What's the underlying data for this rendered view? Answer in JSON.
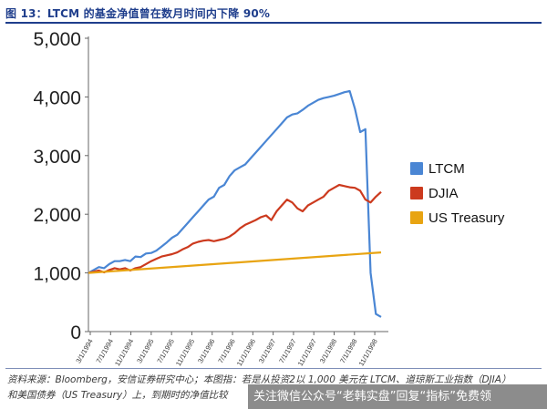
{
  "header": {
    "title": "图 13：LTCM 的基金净值曾在数月时间内下降 90%"
  },
  "chart_data": {
    "type": "line",
    "title": "",
    "xlabel": "",
    "ylabel": "",
    "ylim": [
      0,
      5000
    ],
    "yticks": [
      "0",
      "1,000",
      "2,000",
      "3,000",
      "4,000",
      "5,000"
    ],
    "xticks": [
      "3/1/1994",
      "7/1/1994",
      "11/1/1994",
      "3/1/1995",
      "7/1/1995",
      "11/1/1995",
      "3/1/1996",
      "7/1/1996",
      "11/1/1996",
      "3/1/1997",
      "7/1/1997",
      "11/1/1997",
      "3/1/1998",
      "7/1/1998",
      "11/1/1998"
    ],
    "legend_position": "right",
    "grid": false,
    "series": [
      {
        "name": "LTCM",
        "color": "#4a86d4",
        "values": [
          [
            0,
            1000
          ],
          [
            1,
            1050
          ],
          [
            2,
            1100
          ],
          [
            3,
            1080
          ],
          [
            4,
            1150
          ],
          [
            5,
            1200
          ],
          [
            6,
            1200
          ],
          [
            7,
            1220
          ],
          [
            8,
            1200
          ],
          [
            9,
            1280
          ],
          [
            10,
            1270
          ],
          [
            11,
            1330
          ],
          [
            12,
            1340
          ],
          [
            13,
            1380
          ],
          [
            14,
            1450
          ],
          [
            15,
            1520
          ],
          [
            16,
            1600
          ],
          [
            17,
            1650
          ],
          [
            18,
            1750
          ],
          [
            19,
            1850
          ],
          [
            20,
            1950
          ],
          [
            21,
            2050
          ],
          [
            22,
            2150
          ],
          [
            23,
            2250
          ],
          [
            24,
            2300
          ],
          [
            25,
            2450
          ],
          [
            26,
            2500
          ],
          [
            27,
            2650
          ],
          [
            28,
            2750
          ],
          [
            29,
            2800
          ],
          [
            30,
            2850
          ],
          [
            31,
            2950
          ],
          [
            32,
            3050
          ],
          [
            33,
            3150
          ],
          [
            34,
            3250
          ],
          [
            35,
            3350
          ],
          [
            36,
            3450
          ],
          [
            37,
            3550
          ],
          [
            38,
            3650
          ],
          [
            39,
            3700
          ],
          [
            40,
            3720
          ],
          [
            41,
            3780
          ],
          [
            42,
            3850
          ],
          [
            43,
            3900
          ],
          [
            44,
            3950
          ],
          [
            45,
            3980
          ],
          [
            46,
            4000
          ],
          [
            47,
            4020
          ],
          [
            48,
            4050
          ],
          [
            49,
            4080
          ],
          [
            50,
            4100
          ],
          [
            51,
            3800
          ],
          [
            52,
            3400
          ],
          [
            53,
            3450
          ],
          [
            54,
            1000
          ],
          [
            55,
            300
          ],
          [
            56,
            250
          ]
        ]
      },
      {
        "name": "DJIA",
        "color": "#cc3a1e",
        "values": [
          [
            0,
            1000
          ],
          [
            1,
            1020
          ],
          [
            2,
            1040
          ],
          [
            3,
            1010
          ],
          [
            4,
            1050
          ],
          [
            5,
            1080
          ],
          [
            6,
            1060
          ],
          [
            7,
            1080
          ],
          [
            8,
            1040
          ],
          [
            9,
            1080
          ],
          [
            10,
            1100
          ],
          [
            11,
            1150
          ],
          [
            12,
            1200
          ],
          [
            13,
            1240
          ],
          [
            14,
            1280
          ],
          [
            15,
            1300
          ],
          [
            16,
            1320
          ],
          [
            17,
            1350
          ],
          [
            18,
            1400
          ],
          [
            19,
            1440
          ],
          [
            20,
            1500
          ],
          [
            21,
            1530
          ],
          [
            22,
            1550
          ],
          [
            23,
            1560
          ],
          [
            24,
            1540
          ],
          [
            25,
            1560
          ],
          [
            26,
            1580
          ],
          [
            27,
            1620
          ],
          [
            28,
            1680
          ],
          [
            29,
            1760
          ],
          [
            30,
            1820
          ],
          [
            31,
            1860
          ],
          [
            32,
            1900
          ],
          [
            33,
            1950
          ],
          [
            34,
            1980
          ],
          [
            35,
            1900
          ],
          [
            36,
            2050
          ],
          [
            37,
            2150
          ],
          [
            38,
            2250
          ],
          [
            39,
            2200
          ],
          [
            40,
            2100
          ],
          [
            41,
            2050
          ],
          [
            42,
            2150
          ],
          [
            43,
            2200
          ],
          [
            44,
            2250
          ],
          [
            45,
            2300
          ],
          [
            46,
            2400
          ],
          [
            47,
            2450
          ],
          [
            48,
            2500
          ],
          [
            49,
            2480
          ],
          [
            50,
            2460
          ],
          [
            51,
            2450
          ],
          [
            52,
            2400
          ],
          [
            53,
            2250
          ],
          [
            54,
            2200
          ],
          [
            55,
            2300
          ],
          [
            56,
            2380
          ]
        ]
      },
      {
        "name": "US Treasury",
        "color": "#e8a412",
        "values": [
          [
            0,
            1000
          ],
          [
            56,
            1350
          ]
        ]
      }
    ]
  },
  "source": {
    "line1": "资料来源：Bloomberg，安信证券研究中心；本图指：若是从投资2以 1,000 美元在 LTCM、道琼斯工业指数（DJIA）",
    "line2": "和美国债券（US Treasury）上，到期时的净值比较"
  },
  "watermark": {
    "text": "关注微信公众号“老韩实盘”回复“指标”免费领"
  }
}
